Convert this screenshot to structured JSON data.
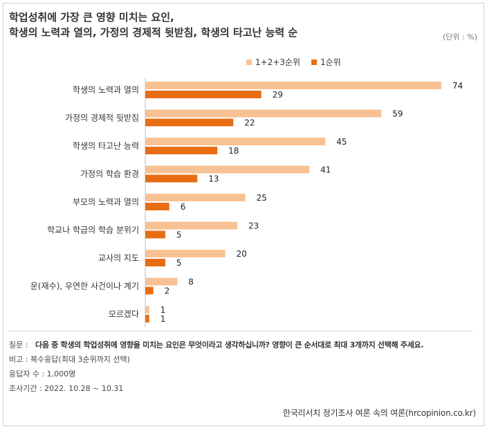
{
  "title": {
    "line1": "학업성취에 가장 큰 영향 미치는 요인,",
    "line2": "학생의 노력과 열의, 가정의 경제적 뒷받침, 학생의 타고난 능력 순"
  },
  "unit_label": "(단위 : %)",
  "colors": {
    "light": "#f8c193",
    "dark": "#e86d12"
  },
  "chart_data": {
    "type": "bar",
    "orientation": "horizontal",
    "categories": [
      "학생의 노력과 열의",
      "가정의 경제적 뒷받침",
      "학생의 타고난 능력",
      "가정의 학습 환경",
      "부모의 노력과 열의",
      "학교나 학급의 학습 분위기",
      "교사의 지도",
      "운(재수), 우연한 사건이나 계기",
      "모르겠다"
    ],
    "series": [
      {
        "name": "1+2+3순위",
        "values": [
          74,
          59,
          45,
          41,
          25,
          23,
          20,
          8,
          1
        ]
      },
      {
        "name": "1순위",
        "values": [
          29,
          22,
          18,
          13,
          6,
          5,
          5,
          2,
          1
        ]
      }
    ],
    "xlim": [
      0,
      80
    ],
    "legend": "top-right",
    "grid": false
  },
  "notes": {
    "question_label": "질문 :",
    "question_text": "다음 중 학생의 학업성취에 영향을 미치는 요인은 무엇이라고 생각하십니까? 영향이 큰 순서대로 최대 3개까지 선택해 주세요.",
    "note": "비고 : 복수응답(최대 3순위까지 선택)",
    "respondents": "응답자 수 : 1,000명",
    "period": "조사기간 : 2022. 10.28 ~ 10.31"
  },
  "source": "한국리서치 정기조사 여론 속의 여론(hrcopinion.co.kr)"
}
